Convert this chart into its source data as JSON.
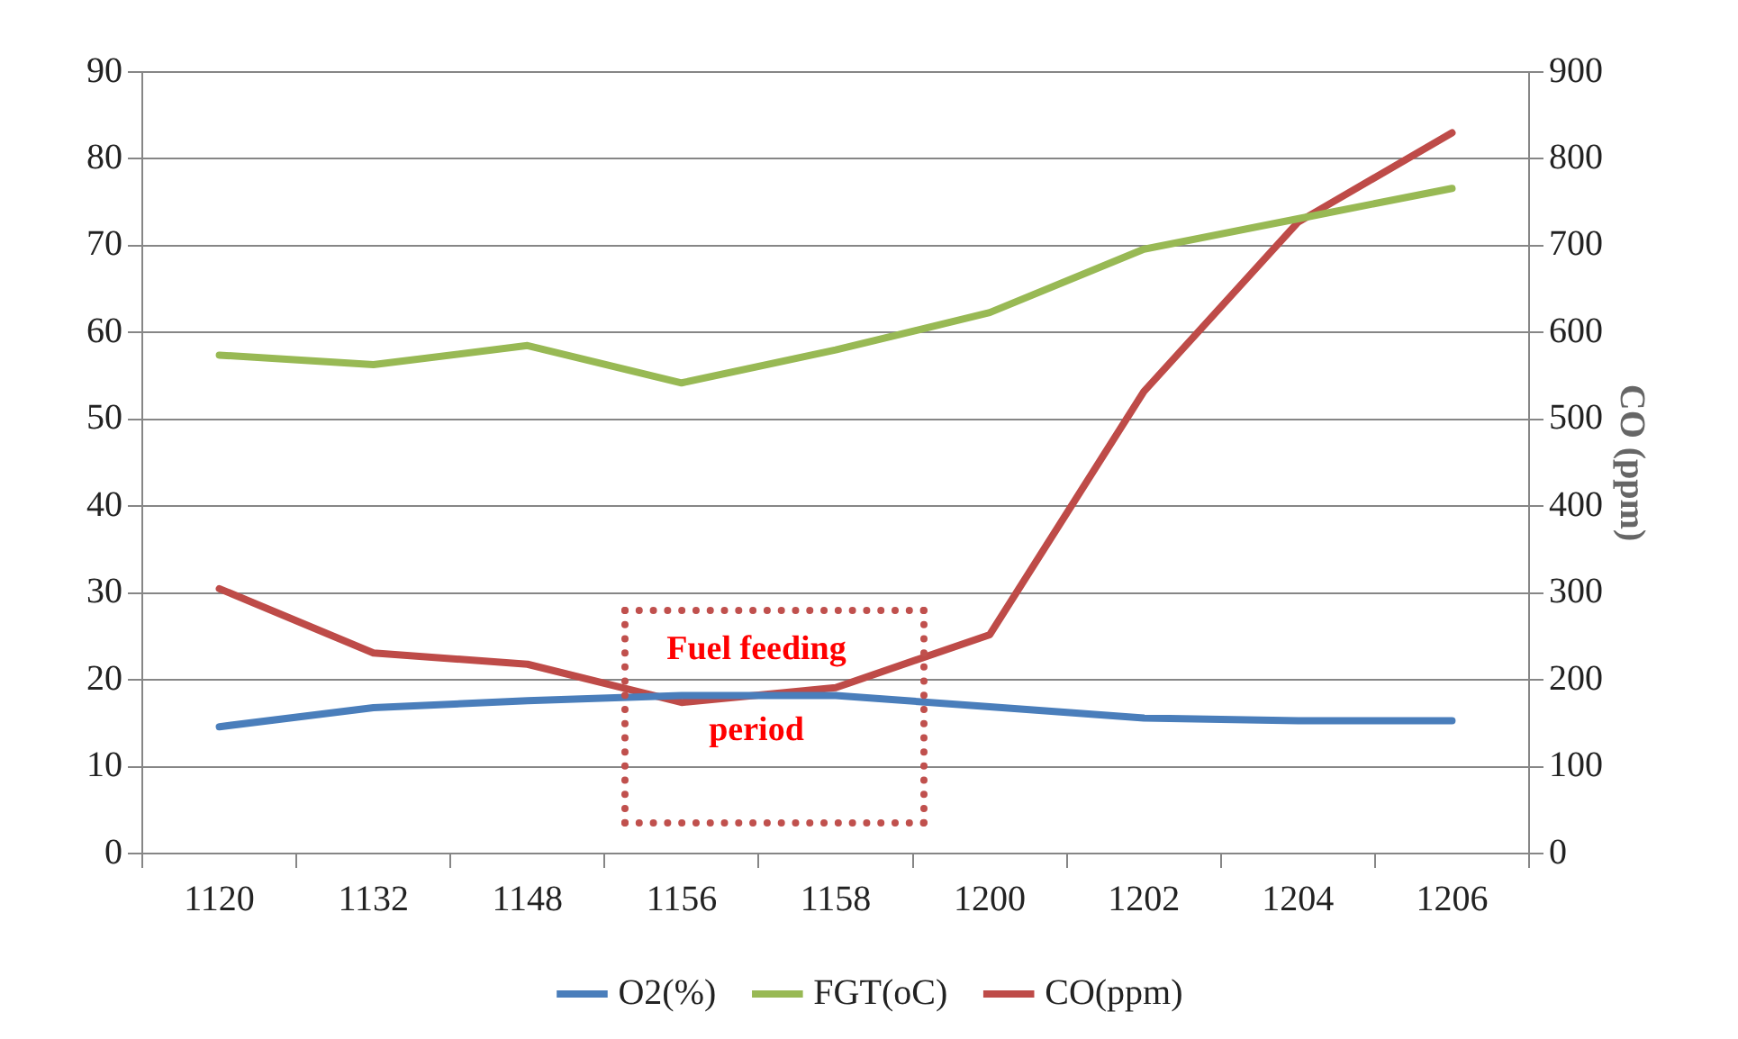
{
  "chart_data": {
    "type": "line",
    "y2label": "CO (ppm)",
    "categories": [
      "1120",
      "1132",
      "1148",
      "1156",
      "1158",
      "1200",
      "1202",
      "1204",
      "1206"
    ],
    "series": [
      {
        "name": "O2(%)",
        "color": "#4a7ebb",
        "values": [
          14.6,
          16.8,
          17.6,
          18.2,
          18.2,
          16.9,
          15.6,
          15.3,
          15.3
        ]
      },
      {
        "name": "FGT(oC)",
        "color": "#98b954",
        "values": [
          57.4,
          56.3,
          58.5,
          54.2,
          58,
          62.3,
          69.6,
          73.1,
          76.6
        ]
      },
      {
        "name": "CO(ppm)",
        "color": "#be4b48",
        "axis": "y2",
        "values": [
          305,
          231,
          218,
          174,
          191,
          252,
          532,
          727,
          830
        ]
      }
    ],
    "ylim": [
      0,
      90
    ],
    "yticks": [
      0,
      10,
      20,
      30,
      40,
      50,
      60,
      70,
      80,
      90
    ],
    "y2lim": [
      0,
      900
    ],
    "y2ticks": [
      0,
      100,
      200,
      300,
      400,
      500,
      600,
      700,
      800,
      900
    ],
    "grid": "y",
    "legend": "bottom",
    "marker": "none",
    "line_style": "solid",
    "annotations": [
      "Fuel feeding period"
    ]
  }
}
